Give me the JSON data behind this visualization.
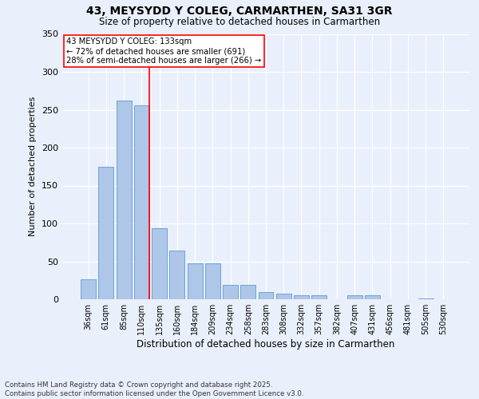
{
  "title1": "43, MEYSYDD Y COLEG, CARMARTHEN, SA31 3GR",
  "title2": "Size of property relative to detached houses in Carmarthen",
  "xlabel": "Distribution of detached houses by size in Carmarthen",
  "ylabel": "Number of detached properties",
  "categories": [
    "36sqm",
    "61sqm",
    "85sqm",
    "110sqm",
    "135sqm",
    "160sqm",
    "184sqm",
    "209sqm",
    "234sqm",
    "258sqm",
    "283sqm",
    "308sqm",
    "332sqm",
    "357sqm",
    "382sqm",
    "407sqm",
    "431sqm",
    "456sqm",
    "481sqm",
    "505sqm",
    "530sqm"
  ],
  "values": [
    26,
    175,
    262,
    256,
    94,
    64,
    47,
    47,
    19,
    19,
    9,
    7,
    5,
    5,
    0,
    5,
    5,
    0,
    0,
    1,
    0
  ],
  "bar_color": "#aec6e8",
  "bar_edge_color": "#5b9bd5",
  "annotation_text": "43 MEYSYDD Y COLEG: 133sqm\n← 72% of detached houses are smaller (691)\n28% of semi-detached houses are larger (266) →",
  "annotation_box_color": "white",
  "annotation_box_edge": "red",
  "marker_line_color": "red",
  "background_color": "#eaf0fb",
  "footer": "Contains HM Land Registry data © Crown copyright and database right 2025.\nContains public sector information licensed under the Open Government Licence v3.0.",
  "ylim": [
    0,
    350
  ],
  "yticks": [
    0,
    50,
    100,
    150,
    200,
    250,
    300,
    350
  ]
}
